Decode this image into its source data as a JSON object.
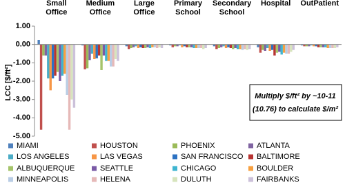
{
  "chart_data": {
    "type": "bar",
    "categories": [
      "Small Office",
      "Medium Office",
      "Large Office",
      "Primary School",
      "Secondary School",
      "Hospital",
      "OutPatient"
    ],
    "y_label": "LCC [$/ft²]",
    "annotation": [
      "Multiply $/ft² by ~10-11",
      "(10.76) to calculate $/m²"
    ],
    "ylim": [
      -5,
      1
    ],
    "yticks": [
      {
        "value": 1,
        "label": "1.00"
      },
      {
        "value": 0,
        "label": "0.00"
      },
      {
        "value": -1,
        "label": "-1.00"
      },
      {
        "value": -2,
        "label": "-2.00"
      },
      {
        "value": -3,
        "label": "-3.00"
      },
      {
        "value": -4,
        "label": "-4.00"
      },
      {
        "value": -5,
        "label": "-5.00"
      }
    ],
    "grid": false,
    "legend": "bottom",
    "series": [
      {
        "name": "MIAMI",
        "color": "#4f81bd",
        "values": [
          0.25,
          -0.05,
          -0.1,
          -0.05,
          -0.1,
          -0.15,
          -0.05
        ]
      },
      {
        "name": "HOUSTON",
        "color": "#c0504d",
        "values": [
          -4.65,
          -1.35,
          -0.25,
          -0.15,
          -0.25,
          -0.45,
          -0.1
        ]
      },
      {
        "name": "PHOENIX",
        "color": "#9bbb59",
        "values": [
          -0.6,
          -1.3,
          -0.2,
          -0.1,
          -0.2,
          -0.3,
          -0.1
        ]
      },
      {
        "name": "ATLANTA",
        "color": "#8064a2",
        "values": [
          -0.6,
          -0.85,
          -0.15,
          -0.1,
          -0.15,
          -0.35,
          -0.1
        ]
      },
      {
        "name": "LOS ANGELES",
        "color": "#4bacc6",
        "values": [
          -1.85,
          -0.5,
          -0.1,
          -0.05,
          -0.1,
          -0.2,
          -0.05
        ]
      },
      {
        "name": "LAS VEGAS",
        "color": "#f79646",
        "values": [
          -2.5,
          -0.8,
          -0.2,
          -0.15,
          -0.2,
          -0.35,
          -0.1
        ]
      },
      {
        "name": "SAN FRANCISCO",
        "color": "#2c72c2",
        "values": [
          -1.85,
          -0.75,
          -0.15,
          -0.1,
          -0.15,
          -0.3,
          -0.1
        ]
      },
      {
        "name": "BALTIMORE",
        "color": "#b83432",
        "values": [
          -1.7,
          -0.6,
          -0.2,
          -0.15,
          -0.2,
          -0.6,
          -0.15
        ]
      },
      {
        "name": "ALBUQUERQUE",
        "color": "#a5c46a",
        "values": [
          -1.5,
          -1.4,
          -0.2,
          -0.15,
          -0.25,
          -0.45,
          -0.15
        ]
      },
      {
        "name": "SEATTLE",
        "color": "#7a5aa6",
        "values": [
          -2.0,
          -0.6,
          -0.15,
          -0.15,
          -0.2,
          -0.4,
          -0.15
        ]
      },
      {
        "name": "CHICAGO",
        "color": "#3fb5d0",
        "values": [
          -1.7,
          -0.9,
          -0.2,
          -0.2,
          -0.25,
          -0.55,
          -0.15
        ]
      },
      {
        "name": "BOULDER",
        "color": "#f7a040",
        "values": [
          -1.6,
          -0.9,
          -0.15,
          -0.2,
          -0.25,
          -0.45,
          -0.2
        ]
      },
      {
        "name": "MINNEAPOLIS",
        "color": "#b9cde5",
        "values": [
          -2.75,
          -1.2,
          -0.15,
          -0.2,
          -0.3,
          -0.5,
          -0.2
        ]
      },
      {
        "name": "HELENA",
        "color": "#e6b9b8",
        "values": [
          -4.65,
          -1.2,
          -0.2,
          -0.2,
          -0.25,
          -0.5,
          -0.2
        ]
      },
      {
        "name": "DULUTH",
        "color": "#d7e4bd",
        "values": [
          -3.0,
          -0.8,
          -0.15,
          -0.25,
          -0.3,
          -0.4,
          -0.2
        ]
      },
      {
        "name": "FAIRBANKS",
        "color": "#ccc1da",
        "values": [
          -3.45,
          -0.9,
          -0.2,
          -0.2,
          -0.25,
          -0.3,
          -0.15
        ]
      }
    ]
  }
}
